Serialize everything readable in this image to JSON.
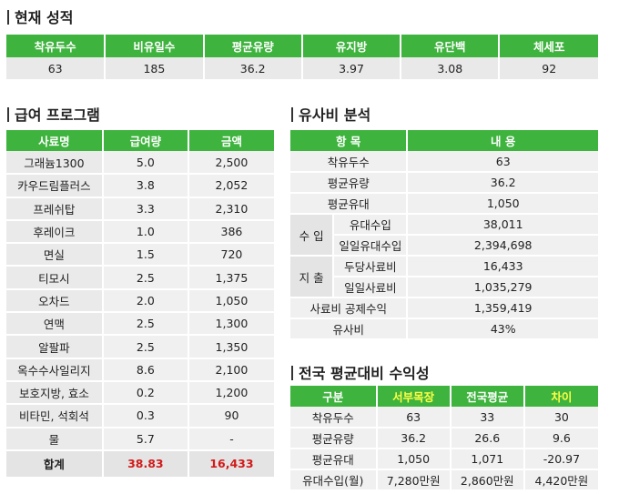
{
  "current": {
    "title": "현재 성적",
    "headers": [
      "착유두수",
      "비유일수",
      "평균유량",
      "유지방",
      "유단백",
      "체세포"
    ],
    "values": [
      "63",
      "185",
      "36.2",
      "3.97",
      "3.08",
      "92"
    ]
  },
  "feed": {
    "title": "급여 프로그램",
    "headers": [
      "사료명",
      "급여량",
      "금액"
    ],
    "rows": [
      [
        "그래늄1300",
        "5.0",
        "2,500"
      ],
      [
        "카우드림플러스",
        "3.8",
        "2,052"
      ],
      [
        "프레쉬탑",
        "3.3",
        "2,310"
      ],
      [
        "후레이크",
        "1.0",
        "386"
      ],
      [
        "면실",
        "1.5",
        "720"
      ],
      [
        "티모시",
        "2.5",
        "1,375"
      ],
      [
        "오차드",
        "2.0",
        "1,050"
      ],
      [
        "연맥",
        "2.5",
        "1,300"
      ],
      [
        "알팔파",
        "2.5",
        "1,350"
      ],
      [
        "옥수수사일리지",
        "8.6",
        "2,100"
      ],
      [
        "보호지방, 효소",
        "0.2",
        "1,200"
      ],
      [
        "비타민, 석회석",
        "0.3",
        "90"
      ],
      [
        "물",
        "5.7",
        "-"
      ]
    ],
    "total": [
      "합계",
      "38.83",
      "16,433"
    ]
  },
  "analysis": {
    "title": "유사비 분석",
    "headers": [
      "항 목",
      "내 용"
    ],
    "rows": [
      {
        "label": "착유두수",
        "value": "63"
      },
      {
        "label": "평균유량",
        "value": "36.2"
      },
      {
        "label": "평균유대",
        "value": "1,050"
      }
    ],
    "income": {
      "group": "수 입",
      "rows": [
        {
          "label": "유대수입",
          "value": "38,011"
        },
        {
          "label": "일일유대수입",
          "value": "2,394,698"
        }
      ]
    },
    "expense": {
      "group": "지 출",
      "rows": [
        {
          "label": "두당사료비",
          "value": "16,433"
        },
        {
          "label": "일일사료비",
          "value": "1,035,279"
        }
      ]
    },
    "tail": [
      {
        "label": "사료비 공제수익",
        "value": "1,359,419"
      },
      {
        "label": "유사비",
        "value": "43%"
      }
    ]
  },
  "compare": {
    "title": "전국 평균대비 수익성",
    "headers": [
      "구분",
      "서부목장",
      "전국평균",
      "차이"
    ],
    "rows": [
      [
        "착유두수",
        "63",
        "33",
        "30"
      ],
      [
        "평균유량",
        "36.2",
        "26.6",
        "9.6"
      ],
      [
        "평균유대",
        "1,050",
        "1,071",
        "-20.97"
      ],
      [
        "유대수입(월)",
        "7,280만원",
        "2,860만원",
        "4,420만원"
      ]
    ]
  },
  "colors": {
    "header_green": "#3eb33e",
    "highlight_yellow": "#ffff44",
    "total_red": "#d11b1b"
  }
}
